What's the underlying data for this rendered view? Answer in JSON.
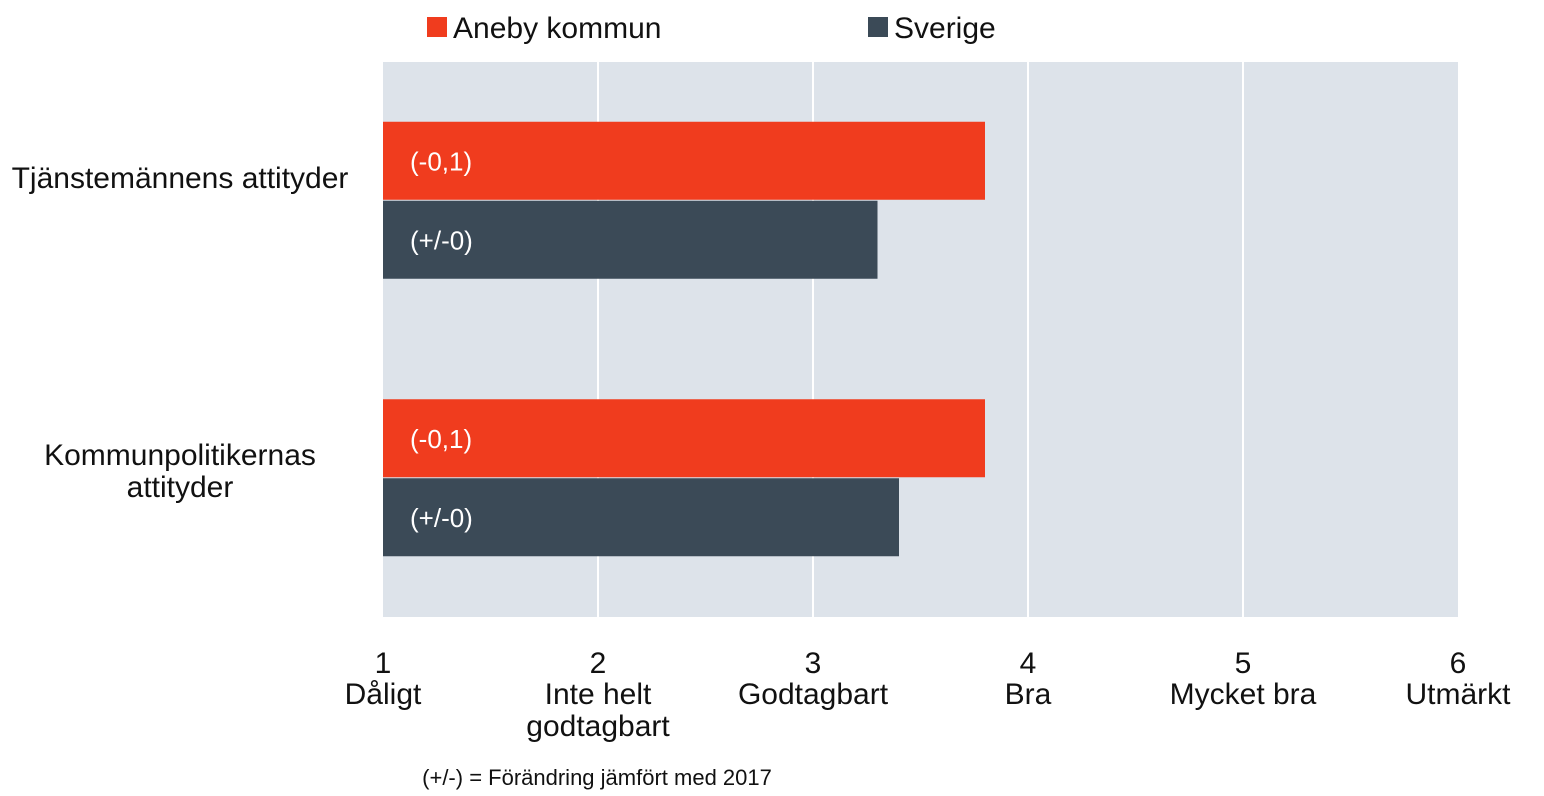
{
  "chart_data": {
    "type": "hbar",
    "categories": [
      "Tjänstemännens attityder",
      "Kommunpolitikernas attityder"
    ],
    "series": [
      {
        "name": "Aneby kommun",
        "color": "#f03c1e",
        "values": [
          3.8,
          3.8
        ],
        "change_labels": [
          "(-0,1)",
          "(-0,1)"
        ]
      },
      {
        "name": "Sverige",
        "color": "#3b4a57",
        "values": [
          3.3,
          3.4
        ],
        "change_labels": [
          "(+/-0)",
          "(+/-0)"
        ]
      }
    ],
    "xlim": [
      1,
      6
    ],
    "xticks": [
      1,
      2,
      3,
      4,
      5,
      6
    ],
    "xtick_descriptions": [
      "Dåligt",
      "Inte helt godtagbart",
      "Godtagbart",
      "Bra",
      "Mycket bra",
      "Utmärkt"
    ],
    "grid": true,
    "background": "#dde3ea",
    "note": "(+/-) = Förändring jämfört med 2017"
  }
}
